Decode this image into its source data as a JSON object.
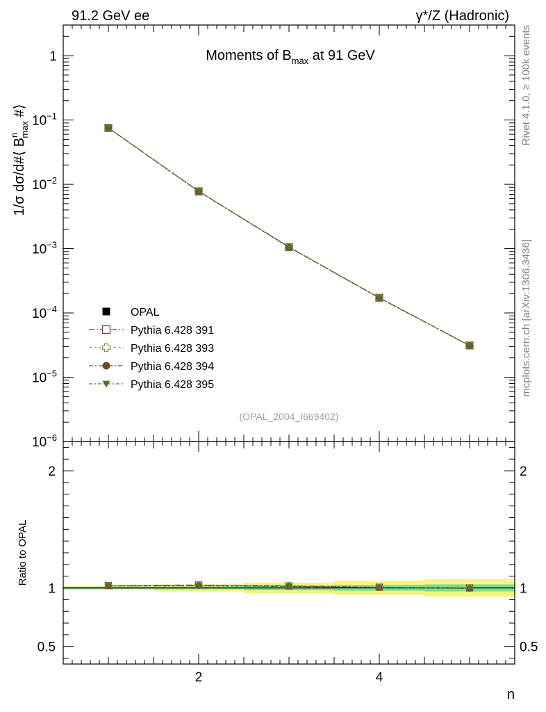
{
  "header": {
    "left_label": "91.2 GeV ee",
    "right_label": "γ*/Z (Hadronic)"
  },
  "side_labels": {
    "rivet": "Rivet 4.1.0, ≥ 100k events",
    "mcplots": "mcplots.cern.ch [arXiv:1306.3436]"
  },
  "chart_data": [
    {
      "panel": "main",
      "type": "line",
      "title": "Moments of B_max at 91 GeV",
      "title_parts": {
        "main": "Moments of B",
        "sub": "max",
        "rest": " at 91 GeV"
      },
      "watermark": "(OPAL_2004_I669402)",
      "xlabel": "n",
      "ylabel": "1/σ  dσ/d#⟨ B^n_max #⟩",
      "ylabel_parts": {
        "a": "1/σ  dσ/d#⟨ B",
        "sup": "n",
        "sub": "max",
        "b": " #⟩"
      },
      "yscale": "log",
      "xlim": [
        0.5,
        5.5
      ],
      "ylim": [
        1e-06,
        3
      ],
      "ytick_labels": [
        {
          "value": 1,
          "base": "1",
          "exp": ""
        },
        {
          "value": 0.1,
          "base": "10",
          "exp": "−1"
        },
        {
          "value": 0.01,
          "base": "10",
          "exp": "−2"
        },
        {
          "value": 0.001,
          "base": "10",
          "exp": "−3"
        },
        {
          "value": 0.0001,
          "base": "10",
          "exp": "−4"
        },
        {
          "value": 1e-05,
          "base": "10",
          "exp": "−5"
        },
        {
          "value": 1e-06,
          "base": "10",
          "exp": "−6"
        }
      ],
      "x": [
        1,
        2,
        3,
        4,
        5
      ],
      "series": [
        {
          "name": "OPAL",
          "marker": "square-filled",
          "color": "#000000",
          "values": [
            0.074,
            0.0076,
            0.00104,
            0.000171,
            3.1e-05
          ]
        },
        {
          "name": "Pythia 6.428 391",
          "marker": "square-open",
          "color": "#7b3a5b",
          "values": [
            0.0755,
            0.0078,
            0.00106,
            0.000172,
            3.12e-05
          ]
        },
        {
          "name": "Pythia 6.428 393",
          "marker": "cross-open",
          "color": "#9a8a4a",
          "values": [
            0.0754,
            0.00778,
            0.00106,
            0.000172,
            3.11e-05
          ]
        },
        {
          "name": "Pythia 6.428 394",
          "marker": "circle-filled",
          "color": "#6b4a2a",
          "values": [
            0.0753,
            0.00777,
            0.00105,
            0.000171,
            3.1e-05
          ]
        },
        {
          "name": "Pythia 6.428 395",
          "marker": "triangle-down-filled",
          "color": "#4a7a1a",
          "values": [
            0.0752,
            0.00776,
            0.00105,
            0.000171,
            3.1e-05
          ]
        }
      ]
    },
    {
      "panel": "ratio",
      "type": "line",
      "ylabel": "Ratio to OPAL",
      "xlabel": "n",
      "xlim": [
        0.5,
        5.5
      ],
      "ylim": [
        0.35,
        2.25
      ],
      "xticks": [
        2,
        4
      ],
      "xtick_labels": [
        "2",
        "4"
      ],
      "yticks": [
        0.5,
        1,
        2
      ],
      "ytick_labels": [
        "0.5",
        "1",
        "2"
      ],
      "x": [
        1,
        2,
        3,
        4,
        5
      ],
      "band_inner": [
        0.01,
        0.012,
        0.02,
        0.025,
        0.03
      ],
      "band_outer": [
        0.015,
        0.03,
        0.045,
        0.06,
        0.075
      ],
      "series": [
        {
          "name": "OPAL",
          "values": [
            1.0,
            1.0,
            1.0,
            1.0,
            1.0
          ]
        },
        {
          "name": "Pythia 6.428 391",
          "values": [
            1.02,
            1.025,
            1.018,
            1.006,
            1.0
          ]
        },
        {
          "name": "Pythia 6.428 393",
          "values": [
            1.019,
            1.022,
            1.016,
            1.005,
            0.998
          ]
        },
        {
          "name": "Pythia 6.428 394",
          "values": [
            1.017,
            1.02,
            1.014,
            1.003,
            0.996
          ]
        },
        {
          "name": "Pythia 6.428 395",
          "values": [
            1.016,
            1.018,
            1.012,
            1.002,
            0.995
          ]
        }
      ]
    }
  ]
}
